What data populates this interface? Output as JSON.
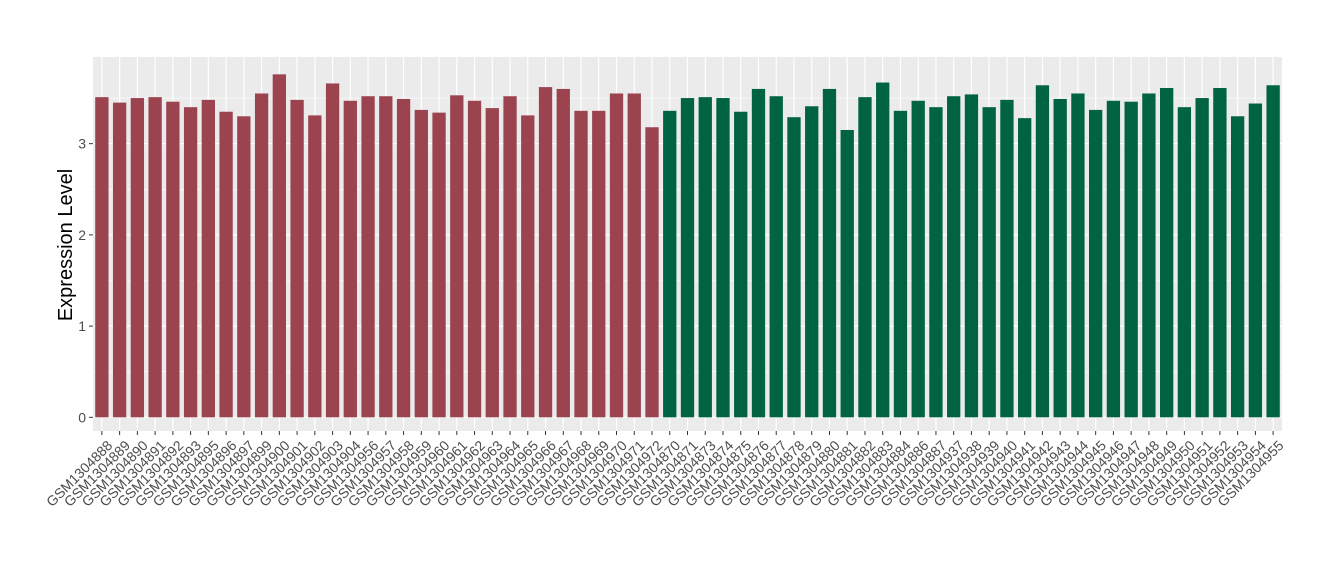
{
  "chart_data": {
    "type": "bar",
    "ylabel": "Expression Level",
    "xlabel": "",
    "title": "",
    "ylim": [
      -0.15,
      3.95
    ],
    "yticks": [
      0,
      1,
      2,
      3
    ],
    "grid": true,
    "legend": "none",
    "colors": {
      "group_a": "#9b4450",
      "group_b": "#006341",
      "panel_bg": "#ebebeb",
      "grid": "#ffffff"
    },
    "categories": [
      "GSM1304888",
      "GSM1304889",
      "GSM1304890",
      "GSM1304891",
      "GSM1304892",
      "GSM1304893",
      "GSM1304895",
      "GSM1304896",
      "GSM1304897",
      "GSM1304899",
      "GSM1304900",
      "GSM1304901",
      "GSM1304902",
      "GSM1304903",
      "GSM1304904",
      "GSM1304956",
      "GSM1304957",
      "GSM1304958",
      "GSM1304959",
      "GSM1304960",
      "GSM1304961",
      "GSM1304962",
      "GSM1304963",
      "GSM1304964",
      "GSM1304965",
      "GSM1304966",
      "GSM1304967",
      "GSM1304968",
      "GSM1304969",
      "GSM1304970",
      "GSM1304971",
      "GSM1304972",
      "GSM1304870",
      "GSM1304871",
      "GSM1304873",
      "GSM1304874",
      "GSM1304875",
      "GSM1304876",
      "GSM1304877",
      "GSM1304878",
      "GSM1304879",
      "GSM1304880",
      "GSM1304881",
      "GSM1304882",
      "GSM1304883",
      "GSM1304884",
      "GSM1304886",
      "GSM1304887",
      "GSM1304937",
      "GSM1304938",
      "GSM1304939",
      "GSM1304940",
      "GSM1304941",
      "GSM1304942",
      "GSM1304943",
      "GSM1304944",
      "GSM1304945",
      "GSM1304946",
      "GSM1304947",
      "GSM1304948",
      "GSM1304949",
      "GSM1304950",
      "GSM1304951",
      "GSM1304952",
      "GSM1304953",
      "GSM1304954",
      "GSM1304955"
    ],
    "values": [
      3.51,
      3.45,
      3.5,
      3.51,
      3.46,
      3.4,
      3.48,
      3.35,
      3.3,
      3.55,
      3.76,
      3.48,
      3.31,
      3.66,
      3.47,
      3.52,
      3.52,
      3.49,
      3.37,
      3.34,
      3.53,
      3.47,
      3.39,
      3.52,
      3.31,
      3.62,
      3.6,
      3.36,
      3.36,
      3.55,
      3.55,
      3.18,
      3.36,
      3.5,
      3.51,
      3.5,
      3.35,
      3.6,
      3.52,
      3.29,
      3.41,
      3.6,
      3.15,
      3.51,
      3.67,
      3.36,
      3.47,
      3.4,
      3.52,
      3.54,
      3.4,
      3.48,
      3.28,
      3.64,
      3.49,
      3.55,
      3.37,
      3.47,
      3.46,
      3.55,
      3.61,
      3.4,
      3.5,
      3.61,
      3.3,
      3.44,
      3.64
    ],
    "groups": [
      "a",
      "a",
      "a",
      "a",
      "a",
      "a",
      "a",
      "a",
      "a",
      "a",
      "a",
      "a",
      "a",
      "a",
      "a",
      "a",
      "a",
      "a",
      "a",
      "a",
      "a",
      "a",
      "a",
      "a",
      "a",
      "a",
      "a",
      "a",
      "a",
      "a",
      "a",
      "a",
      "b",
      "b",
      "b",
      "b",
      "b",
      "b",
      "b",
      "b",
      "b",
      "b",
      "b",
      "b",
      "b",
      "b",
      "b",
      "b",
      "b",
      "b",
      "b",
      "b",
      "b",
      "b",
      "b",
      "b",
      "b",
      "b",
      "b",
      "b",
      "b",
      "b",
      "b",
      "b",
      "b",
      "b",
      "b"
    ]
  }
}
